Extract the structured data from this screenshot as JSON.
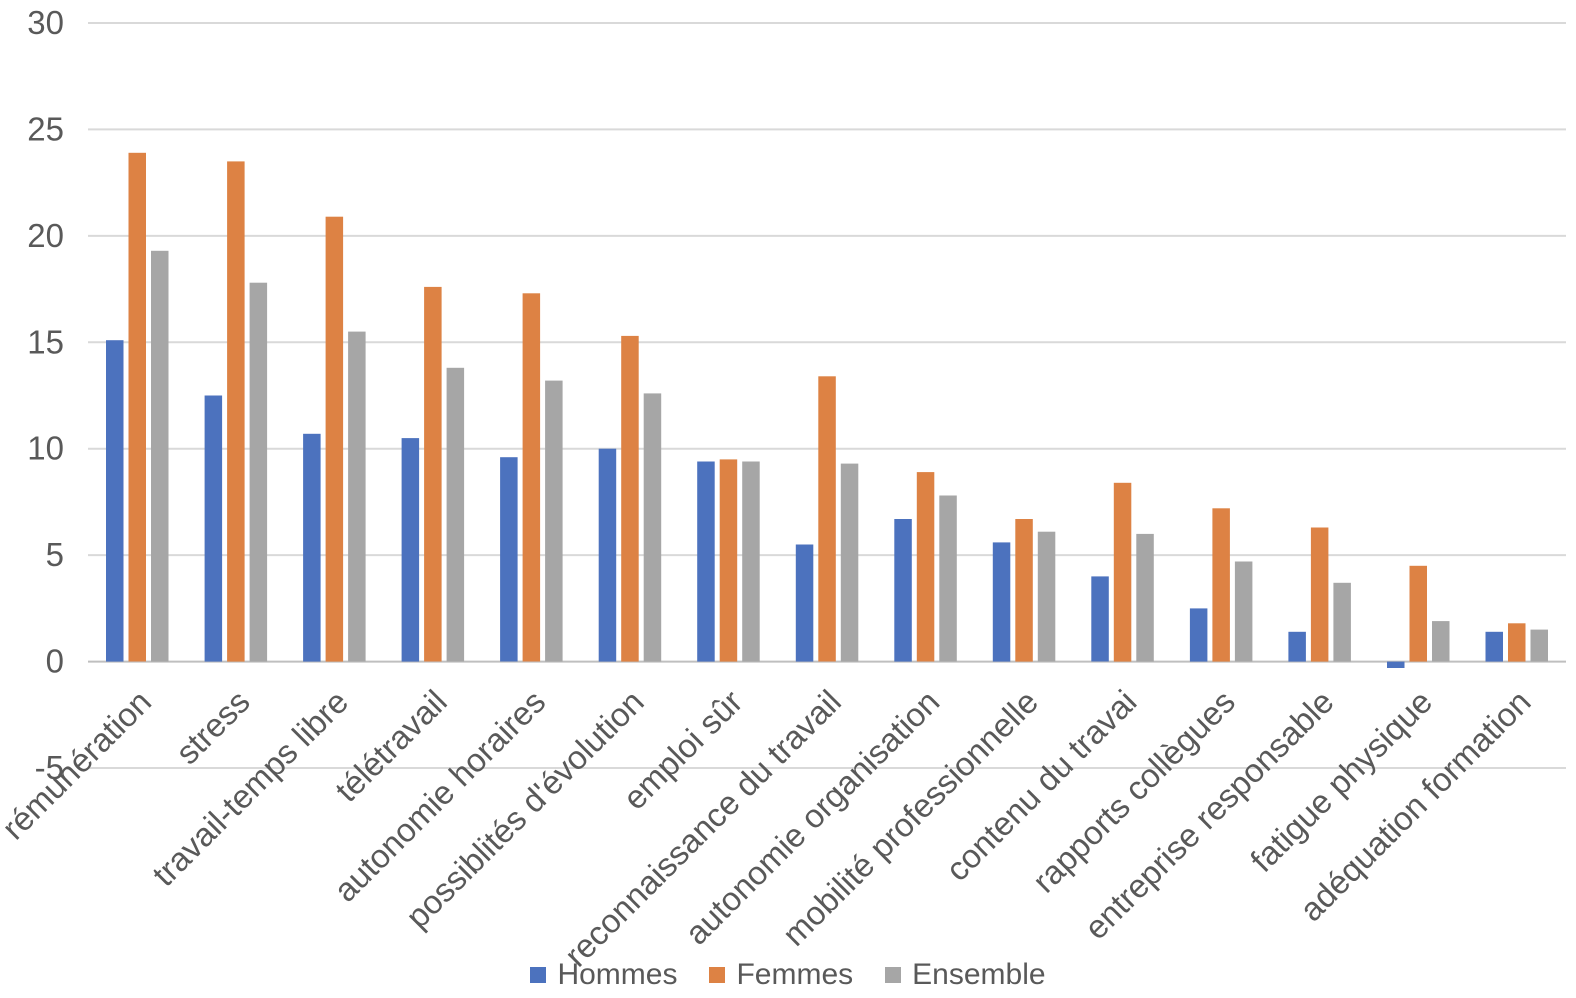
{
  "chart_data": {
    "type": "bar",
    "title": "",
    "xlabel": "",
    "ylabel": "",
    "categories": [
      "rémunération",
      "stress",
      "travail-temps libre",
      "télétravail",
      "autonomie horaires",
      "possiblités d'évolution",
      "emploi sûr",
      "reconnaissance du travail",
      "autonomie organisation",
      "mobilité professionnelle",
      "contenu du travai",
      "rapports collègues",
      "entreprise responsable",
      "fatigue physique",
      "adéquation formation"
    ],
    "series": [
      {
        "name": "Hommes",
        "color": "#4C72BE",
        "values": [
          15.1,
          12.5,
          10.7,
          10.5,
          9.6,
          10.0,
          9.4,
          5.5,
          6.7,
          5.6,
          4.0,
          2.5,
          1.4,
          -0.3,
          1.4
        ]
      },
      {
        "name": "Femmes",
        "color": "#DD8244",
        "values": [
          23.9,
          23.5,
          20.9,
          17.6,
          17.3,
          15.3,
          9.5,
          13.4,
          8.9,
          6.7,
          8.4,
          7.2,
          6.3,
          4.5,
          1.8
        ]
      },
      {
        "name": "Ensemble",
        "color": "#A6A6A6",
        "values": [
          19.3,
          17.8,
          15.5,
          13.8,
          13.2,
          12.6,
          9.4,
          9.3,
          7.8,
          6.1,
          6.0,
          4.7,
          3.7,
          1.9,
          1.5
        ]
      }
    ],
    "ylim": [
      -5,
      30
    ],
    "yticks": [
      30,
      25,
      20,
      15,
      10,
      5,
      0,
      -5
    ],
    "grid": true,
    "legend_position": "bottom",
    "grid_color": "#D9D9D9",
    "zero_axis_color": "#BFBFBF",
    "tick_label_color": "#595959"
  }
}
